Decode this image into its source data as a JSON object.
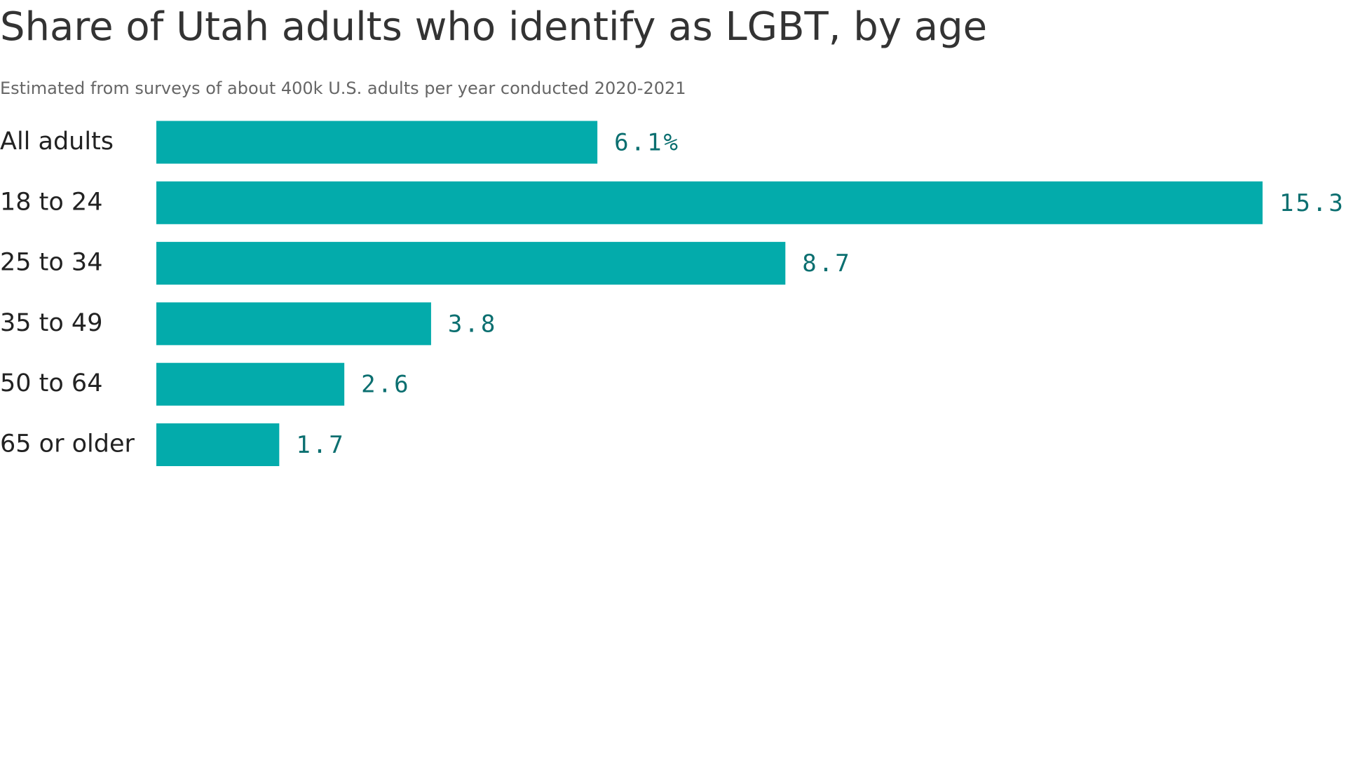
{
  "chart_data": {
    "type": "bar",
    "orientation": "horizontal",
    "title": "Share of Utah adults who identify as LGBT, by age",
    "subtitle": "Estimated from surveys of about 400k U.S. adults per year conducted 2020-2021",
    "categories": [
      "All adults",
      "18 to 24",
      "25 to 34",
      "35 to 49",
      "50 to 64",
      "65 or older"
    ],
    "values": [
      6.1,
      15.3,
      8.7,
      3.8,
      2.6,
      1.7
    ],
    "value_labels": [
      "6.1%",
      "15.3",
      "8.7",
      "3.8",
      "2.6",
      "1.7"
    ],
    "color": "#03abab"
  }
}
